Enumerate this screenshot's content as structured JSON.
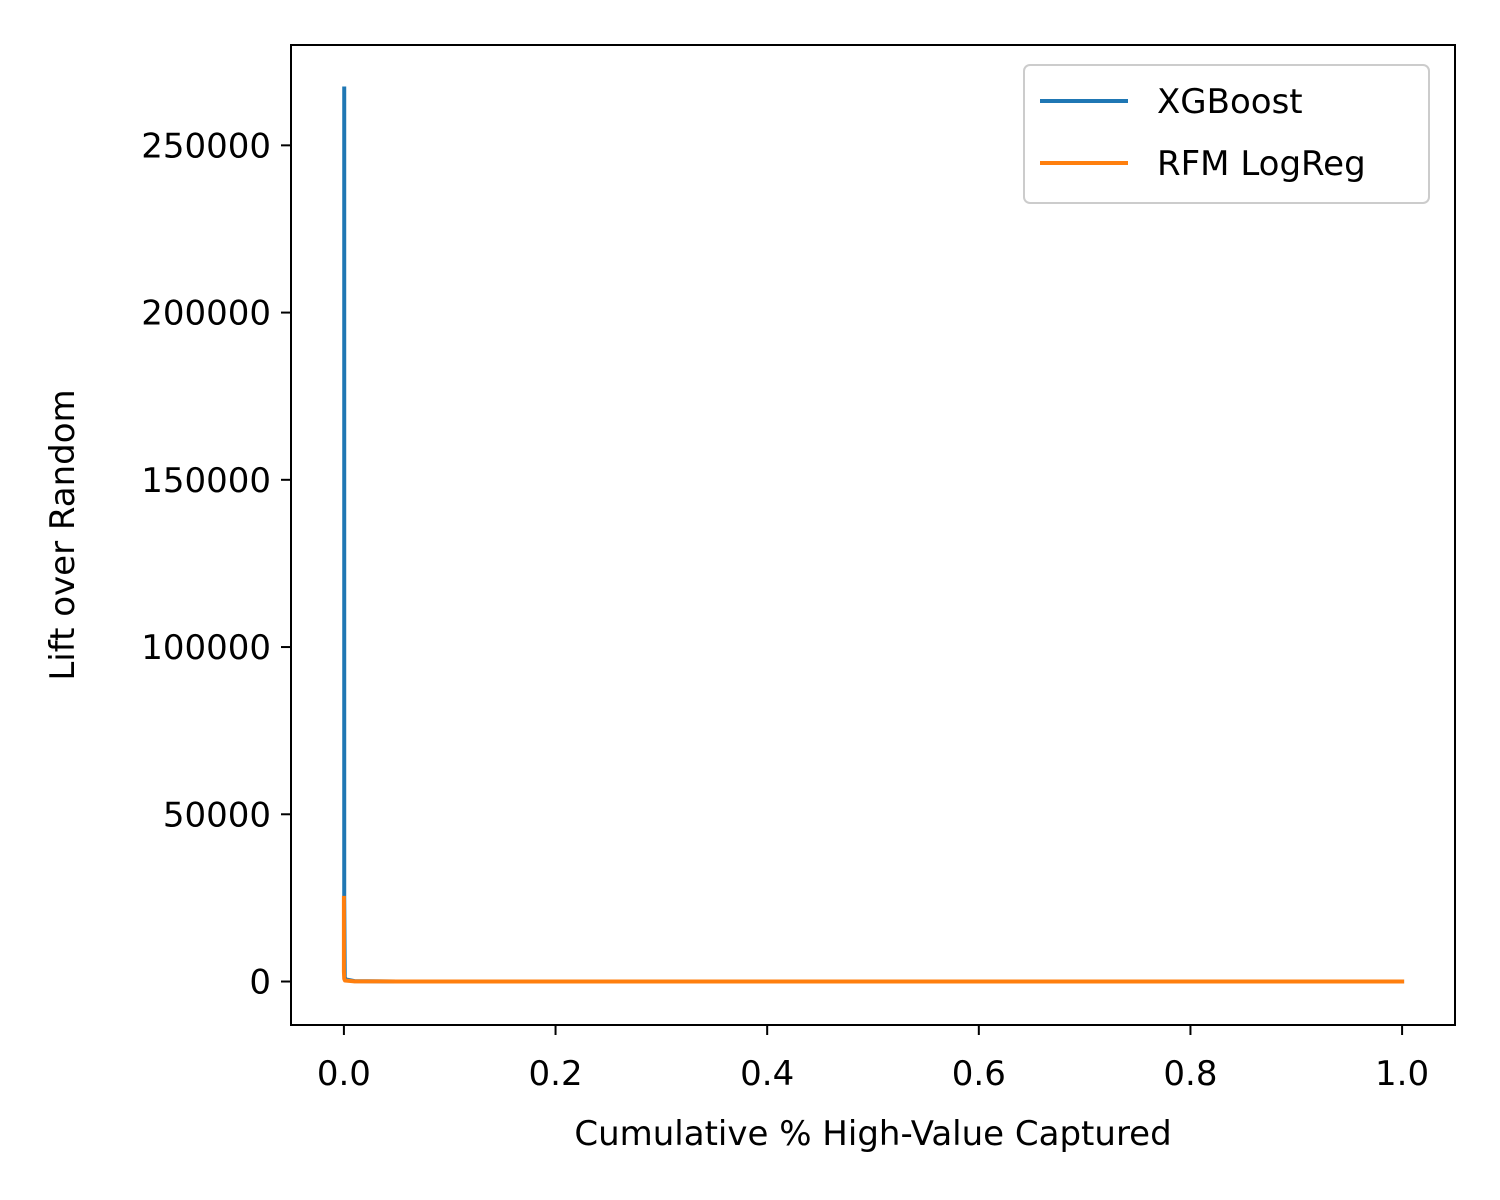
{
  "chart_data": {
    "type": "line",
    "xlabel": "Cumulative % High-Value Captured",
    "ylabel": "Lift over Random",
    "xlim": [
      -0.05,
      1.05
    ],
    "ylim": [
      -13000,
      280000
    ],
    "xticks": [
      0.0,
      0.2,
      0.4,
      0.6,
      0.8,
      1.0
    ],
    "xtick_labels": [
      "0.0",
      "0.2",
      "0.4",
      "0.6",
      "0.8",
      "1.0"
    ],
    "yticks": [
      0,
      50000,
      100000,
      150000,
      200000,
      250000
    ],
    "ytick_labels": [
      "0",
      "50000",
      "100000",
      "150000",
      "200000",
      "250000"
    ],
    "grid": false,
    "legend_position": "top-right",
    "series": [
      {
        "name": "XGBoost",
        "color": "#1f77b4",
        "points": [
          [
            0.0003,
            267000
          ],
          [
            0.0003,
            250000
          ],
          [
            0.0003,
            150000
          ],
          [
            0.0003,
            60000
          ],
          [
            0.0003,
            25000
          ],
          [
            0.0008,
            1200
          ],
          [
            0.002,
            600
          ],
          [
            0.01,
            120
          ],
          [
            0.05,
            25
          ],
          [
            0.2,
            6
          ],
          [
            0.5,
            2.5
          ],
          [
            0.8,
            1.5
          ],
          [
            1.0,
            1
          ]
        ]
      },
      {
        "name": "RFM LogReg",
        "color": "#ff7f0e",
        "points": [
          [
            0.0,
            25000
          ],
          [
            0.0,
            12000
          ],
          [
            0.0,
            3000
          ],
          [
            0.0003,
            800
          ],
          [
            0.001,
            300
          ],
          [
            0.01,
            60
          ],
          [
            0.05,
            15
          ],
          [
            0.2,
            4
          ],
          [
            0.5,
            2
          ],
          [
            0.8,
            1.3
          ],
          [
            1.0,
            1
          ]
        ]
      }
    ]
  }
}
